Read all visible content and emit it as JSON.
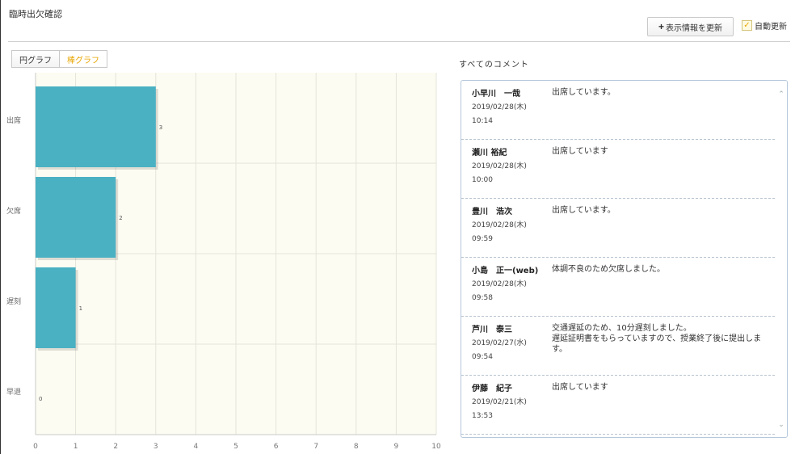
{
  "header": {
    "title": "臨時出欠確認",
    "refresh_icon": "plus-icon",
    "refresh_label": "表示情報を更新",
    "auto_refresh_label": "自動更新",
    "auto_refresh_checked": true
  },
  "tabs": [
    {
      "label": "円グラフ",
      "active": false
    },
    {
      "label": "棒グラフ",
      "active": true
    }
  ],
  "chart_data": {
    "type": "bar",
    "orientation": "horizontal",
    "categories": [
      "出席",
      "欠席",
      "遅刻",
      "早退"
    ],
    "values": [
      3,
      2,
      1,
      0
    ],
    "xlim": [
      0,
      10
    ],
    "xticks": [
      0,
      1,
      2,
      3,
      4,
      5,
      6,
      7,
      8,
      9,
      10
    ],
    "grid": true,
    "bar_color": "#4ab1c3",
    "plot_background": "#fdfcf2"
  },
  "comments": {
    "title": "すべてのコメント",
    "items": [
      {
        "name": "小早川　一哉",
        "date": "2019/02/28(木)",
        "time": "10:14",
        "text": "出席しています。"
      },
      {
        "name": "瀬川 裕紀",
        "date": "2019/02/28(木)",
        "time": "10:00",
        "text": "出席しています"
      },
      {
        "name": "豊川　浩次",
        "date": "2019/02/28(木)",
        "time": "09:59",
        "text": "出席しています。"
      },
      {
        "name": "小島　正一(web)",
        "date": "2019/02/28(木)",
        "time": "09:58",
        "text": "体調不良のため欠席しました。"
      },
      {
        "name": "芦川　泰三",
        "date": "2019/02/27(水)",
        "time": "09:54",
        "text": "交通遅延のため、10分遅刻しました。\n遅延証明書をもらっていますので、授業終了後に提出します。"
      },
      {
        "name": "伊藤　紀子",
        "date": "2019/02/21(木)",
        "time": "13:53",
        "text": "出席しています"
      }
    ]
  }
}
